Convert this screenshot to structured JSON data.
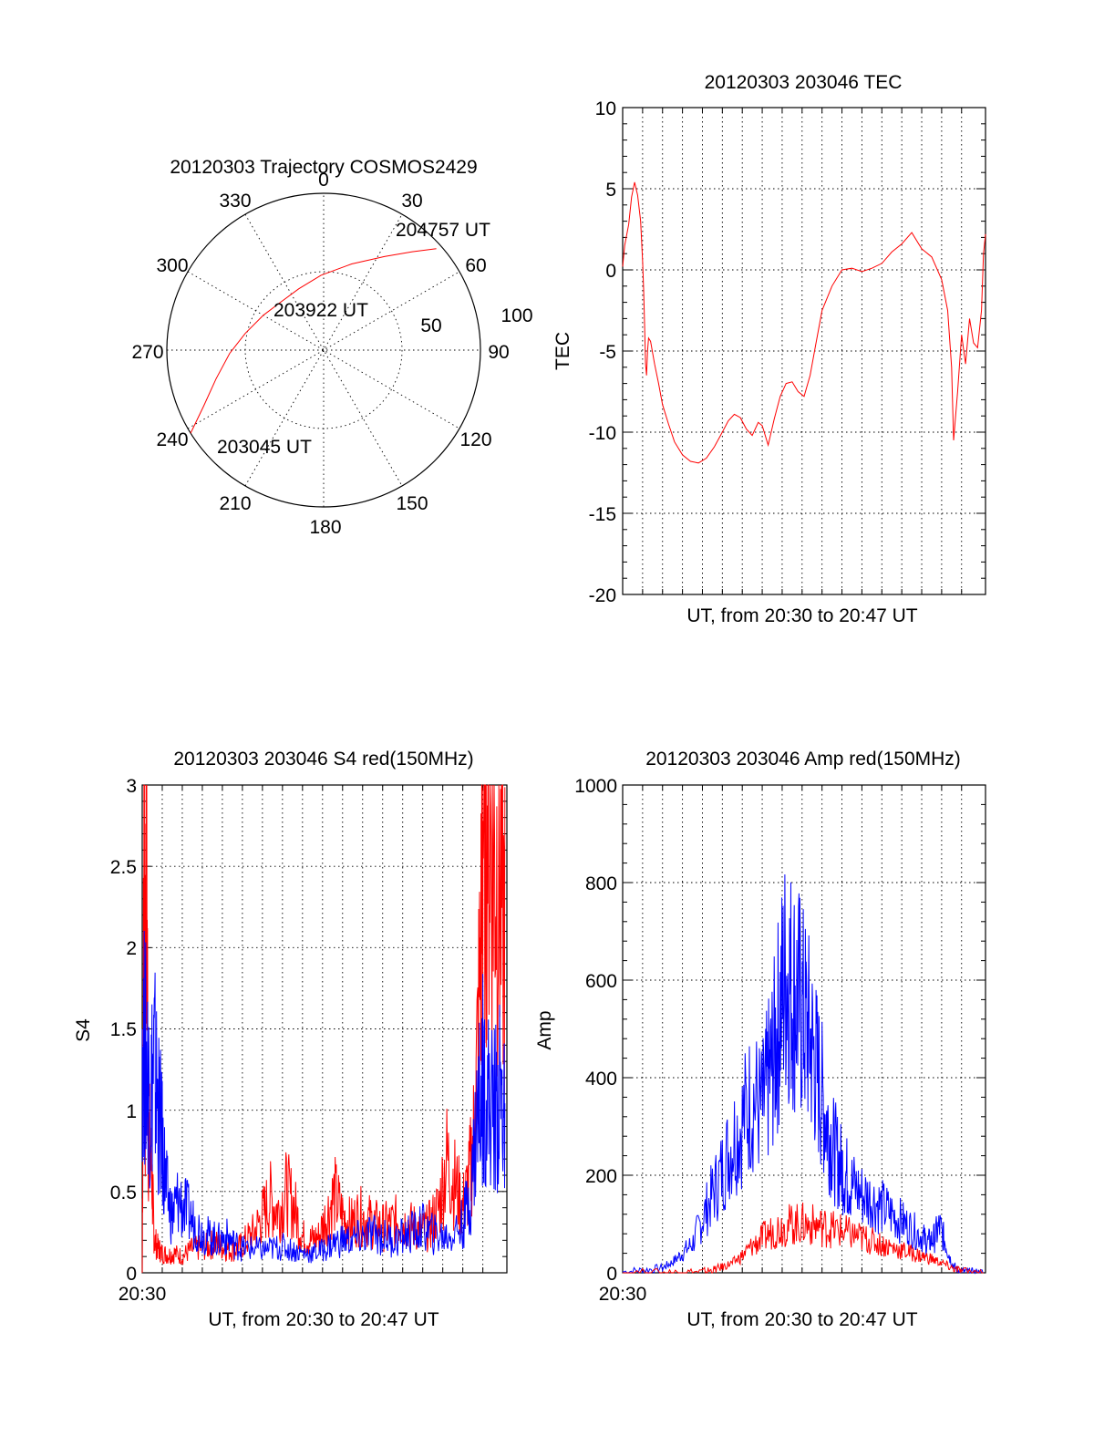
{
  "colors": {
    "red": "#ff0000",
    "blue": "#0000ff",
    "axis": "#000000"
  },
  "chart_data": [
    {
      "type": "polar",
      "title": "20120303 Trajectory COSMOS2429",
      "azimuth_labels": [
        "0",
        "30",
        "60",
        "90",
        "120",
        "150",
        "180",
        "210",
        "240",
        "270",
        "300",
        "330"
      ],
      "ring_labels": [
        "50",
        "100"
      ],
      "rings_elevation": [
        0,
        50
      ],
      "annotations": [
        "204757 UT",
        "203922 UT",
        "203045 UT"
      ],
      "trajectory": {
        "series": "red",
        "az": [
          238,
          245,
          255,
          268,
          282,
          300,
          318,
          338,
          358,
          18,
          33,
          42,
          48
        ],
        "el": [
          0,
          14,
          26,
          36,
          44,
          50,
          53,
          52,
          47,
          38,
          26,
          14,
          3
        ]
      }
    },
    {
      "type": "line",
      "title": "20120303 203046 TEC",
      "xlabel": "UT, from 20:30 to 20:47 UT",
      "ylabel": "TEC",
      "ylim": [
        -20,
        10
      ],
      "yticks": [
        "10",
        "5",
        "0",
        "-5",
        "-10",
        "-15",
        "-20"
      ],
      "series": [
        {
          "name": "TEC",
          "color": "red",
          "x": [
            0.0,
            0.1,
            0.3,
            0.45,
            0.6,
            0.75,
            0.9,
            1.0,
            1.05,
            1.1,
            1.15,
            1.2,
            1.25,
            1.3,
            1.4,
            1.6,
            1.8,
            2.0,
            2.3,
            2.6,
            3.0,
            3.4,
            3.8,
            4.2,
            4.6,
            5.0,
            5.3,
            5.6,
            5.9,
            6.2,
            6.5,
            6.8,
            7.0,
            7.3,
            7.6,
            7.9,
            8.2,
            8.5,
            8.8,
            9.1,
            9.4,
            9.7,
            10.0,
            10.5,
            11.0,
            11.5,
            12.0,
            12.5,
            13.0,
            13.5,
            14.0,
            14.5,
            15.0,
            15.5,
            16.0,
            16.3,
            16.5,
            16.6,
            16.8,
            17.0,
            17.2,
            17.4,
            17.6,
            17.8,
            18.0,
            18.1,
            18.2
          ],
          "values": [
            0.2,
            1.5,
            2.8,
            4.5,
            5.4,
            4.6,
            3.0,
            0.5,
            -1.2,
            -3.5,
            -5.8,
            -6.5,
            -5.0,
            -4.2,
            -4.4,
            -5.8,
            -7.0,
            -8.3,
            -9.5,
            -10.6,
            -11.4,
            -11.8,
            -11.9,
            -11.6,
            -10.9,
            -10.0,
            -9.3,
            -8.9,
            -9.1,
            -9.8,
            -10.2,
            -9.4,
            -9.6,
            -10.8,
            -9.2,
            -7.8,
            -7.0,
            -6.9,
            -7.5,
            -7.8,
            -6.5,
            -4.5,
            -2.5,
            -1.0,
            0.0,
            0.1,
            -0.1,
            0.1,
            0.4,
            1.1,
            1.6,
            2.3,
            1.3,
            0.8,
            -0.6,
            -2.5,
            -6.0,
            -10.5,
            -7.5,
            -4.0,
            -5.8,
            -3.0,
            -4.5,
            -4.8,
            -2.5,
            1.0,
            2.2
          ]
        }
      ]
    },
    {
      "type": "line",
      "title": "20120303 203046 S4 red(150MHz)",
      "xlabel": "UT, from 20:30 to 20:47 UT",
      "ylabel": "S4",
      "x_start_label": "20:30",
      "ylim": [
        0,
        3
      ],
      "yticks": [
        "3",
        "2.5",
        "2",
        "1.5",
        "1",
        "0.5",
        "0"
      ],
      "series": [
        {
          "name": "red",
          "color": "red",
          "x": [
            0.0,
            0.1,
            0.15,
            0.2,
            0.3,
            0.5,
            0.6,
            0.8,
            1.0,
            1.3,
            1.6,
            2.0,
            2.4,
            2.8,
            3.2,
            3.6,
            4.0,
            4.4,
            4.8,
            5.2,
            5.6,
            6.0,
            6.4,
            6.8,
            7.2,
            7.6,
            8.0,
            8.4,
            8.8,
            9.2,
            9.6,
            10.0,
            10.4,
            10.8,
            11.2,
            11.6,
            12.0,
            12.4,
            12.8,
            13.2,
            13.6,
            14.0,
            14.4,
            14.8,
            15.2,
            15.6,
            16.0,
            16.3,
            16.6,
            16.9,
            17.0,
            17.2,
            17.5,
            17.8,
            18.1
          ],
          "values": [
            0.0,
            3.0,
            0.9,
            3.0,
            0.9,
            0.55,
            0.2,
            0.15,
            0.12,
            0.11,
            0.12,
            0.1,
            0.14,
            0.15,
            0.16,
            0.18,
            0.16,
            0.14,
            0.15,
            0.2,
            0.25,
            0.35,
            0.45,
            0.38,
            0.5,
            0.4,
            0.22,
            0.2,
            0.22,
            0.35,
            0.48,
            0.35,
            0.3,
            0.35,
            0.33,
            0.3,
            0.28,
            0.3,
            0.32,
            0.3,
            0.28,
            0.25,
            0.3,
            0.4,
            0.7,
            0.55,
            0.4,
            0.55,
            0.9,
            2.0,
            2.8,
            3.0,
            2.6,
            2.5,
            2.1
          ]
        },
        {
          "name": "blue",
          "color": "blue",
          "x": [
            0.0,
            0.2,
            0.4,
            0.6,
            0.8,
            1.0,
            1.2,
            1.5,
            1.8,
            2.2,
            2.6,
            3.0,
            3.4,
            3.8,
            4.2,
            4.6,
            5.0,
            5.5,
            6.0,
            6.5,
            7.0,
            7.5,
            8.0,
            8.5,
            9.0,
            9.5,
            10.0,
            10.5,
            11.0,
            11.5,
            12.0,
            12.5,
            13.0,
            13.5,
            14.0,
            14.5,
            15.0,
            15.5,
            16.0,
            16.4,
            16.7,
            17.0,
            17.3,
            17.6,
            17.9,
            18.1
          ],
          "values": [
            1.5,
            1.3,
            1.1,
            1.3,
            1.0,
            0.8,
            0.5,
            0.35,
            0.45,
            0.38,
            0.3,
            0.25,
            0.22,
            0.2,
            0.22,
            0.18,
            0.15,
            0.15,
            0.14,
            0.15,
            0.16,
            0.14,
            0.12,
            0.12,
            0.14,
            0.18,
            0.2,
            0.2,
            0.22,
            0.24,
            0.22,
            0.2,
            0.22,
            0.25,
            0.28,
            0.24,
            0.22,
            0.24,
            0.3,
            0.5,
            0.95,
            1.2,
            1.05,
            1.0,
            1.1,
            0.9
          ]
        }
      ]
    },
    {
      "type": "line",
      "title": "20120303 203046 Amp red(150MHz)",
      "xlabel": "UT, from 20:30 to 20:47 UT",
      "ylabel": "Amp",
      "x_start_label": "20:30",
      "ylim": [
        0,
        1000
      ],
      "yticks": [
        "1000",
        "800",
        "600",
        "400",
        "200",
        "0"
      ],
      "series": [
        {
          "name": "blue",
          "color": "blue",
          "x": [
            0.0,
            1.0,
            2.0,
            2.5,
            3.0,
            3.5,
            4.0,
            4.5,
            5.0,
            5.5,
            6.0,
            6.5,
            7.0,
            7.3,
            7.6,
            7.9,
            8.2,
            8.5,
            8.8,
            9.1,
            9.4,
            9.7,
            10.0,
            10.3,
            10.6,
            10.9,
            11.2,
            11.5,
            12.0,
            12.5,
            13.0,
            13.5,
            14.0,
            14.5,
            15.0,
            15.3,
            15.6,
            15.9,
            16.2,
            16.5,
            16.8,
            17.2,
            17.6,
            18.1
          ],
          "values": [
            2,
            5,
            10,
            22,
            40,
            60,
            110,
            160,
            210,
            270,
            310,
            360,
            330,
            390,
            450,
            540,
            620,
            580,
            560,
            520,
            480,
            420,
            360,
            300,
            250,
            220,
            200,
            180,
            160,
            150,
            135,
            120,
            105,
            90,
            75,
            62,
            70,
            95,
            60,
            20,
            5,
            2,
            1,
            0
          ]
        },
        {
          "name": "red",
          "color": "red",
          "x": [
            0.0,
            2.0,
            3.0,
            4.0,
            4.5,
            5.0,
            5.5,
            6.0,
            6.5,
            7.0,
            7.5,
            8.0,
            8.5,
            9.0,
            9.5,
            10.0,
            10.5,
            11.0,
            11.5,
            12.0,
            12.5,
            13.0,
            13.5,
            14.0,
            14.5,
            15.0,
            15.5,
            16.0,
            16.5,
            17.0,
            18.1
          ],
          "values": [
            0,
            0,
            1,
            2,
            5,
            12,
            20,
            35,
            55,
            70,
            85,
            95,
            100,
            100,
            98,
            95,
            90,
            85,
            78,
            72,
            65,
            58,
            52,
            46,
            40,
            34,
            28,
            20,
            10,
            3,
            0
          ]
        }
      ]
    }
  ]
}
